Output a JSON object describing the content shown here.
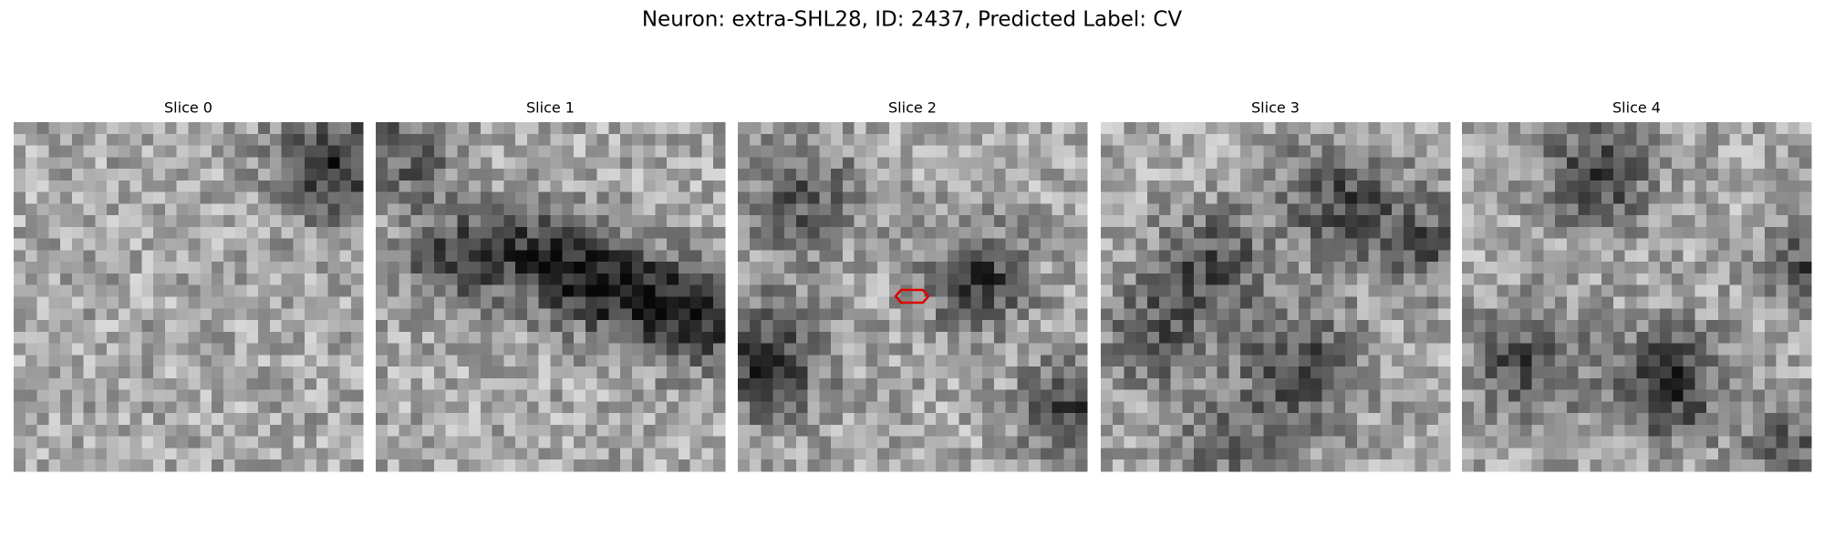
{
  "header": {
    "title": "Neuron: extra-SHL28, ID: 2437, Predicted Label: CV"
  },
  "panels": [
    {
      "title": "Slice 0"
    },
    {
      "title": "Slice 1"
    },
    {
      "title": "Slice 2"
    },
    {
      "title": "Slice 3"
    },
    {
      "title": "Slice 4"
    }
  ]
}
